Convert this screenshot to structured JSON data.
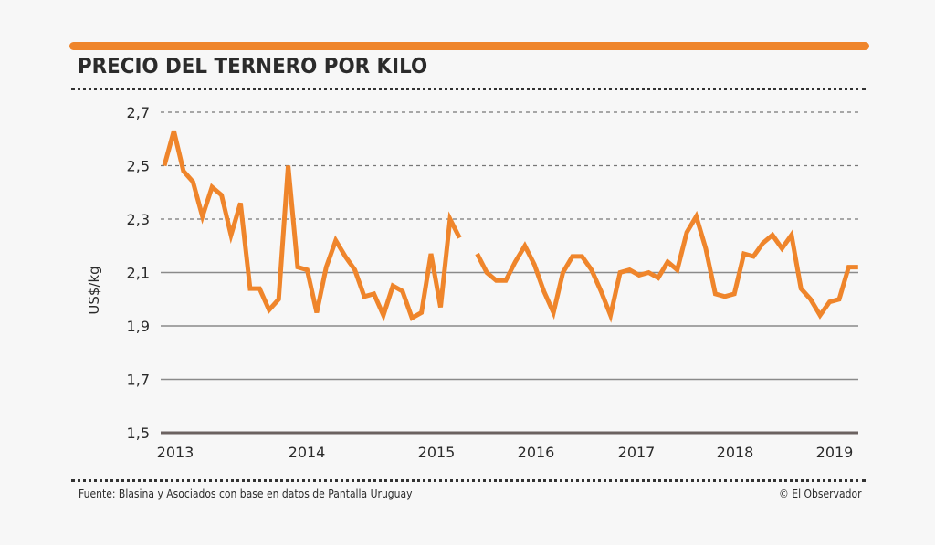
{
  "header": {
    "title": "PRECIO DEL TERNERO POR KILO",
    "accent_color": "#ef852b"
  },
  "footer": {
    "source": "Fuente: Blasina y Asociados con base en datos de Pantalla Uruguay",
    "credit": "© El Observador"
  },
  "chart_data": {
    "type": "line",
    "title": "PRECIO DEL TERNERO POR KILO",
    "xlabel": "",
    "ylabel": "US$/kg",
    "ylim": [
      1.5,
      2.7
    ],
    "yticks": [
      1.5,
      1.7,
      1.9,
      2.1,
      2.3,
      2.5,
      2.7
    ],
    "ytick_labels": [
      "1,5",
      "1,7",
      "1,9",
      "2,1",
      "2,3",
      "2,5",
      "2,7"
    ],
    "grid": "horizontal (dashed above 2,1; solid at and below)",
    "legend": "none",
    "x_unit": "monthly",
    "xlim": [
      2013.0,
      2019.6
    ],
    "xticks": [
      2013.1,
      2014.4,
      2015.7,
      2016.7,
      2017.7,
      2018.7,
      2019.7
    ],
    "xtick_labels": [
      "2013",
      "2014",
      "2015",
      "2016",
      "2017",
      "2018",
      "2019"
    ],
    "line_color": "#ef852b",
    "series": [
      {
        "name": "Precio del ternero (US$/kg)",
        "segments": [
          [
            2.5,
            2.63,
            2.48,
            2.44,
            2.31,
            2.42,
            2.39,
            2.24,
            2.36,
            2.04,
            2.04,
            1.96,
            2.0,
            2.5,
            2.12,
            2.11,
            1.95,
            2.12,
            2.22,
            2.16,
            2.11,
            2.01,
            2.02,
            1.94,
            2.05,
            2.03,
            1.93,
            1.95,
            2.17,
            1.97,
            2.3,
            2.23
          ],
          [
            2.17,
            2.1,
            2.07,
            2.07,
            2.14,
            2.2,
            2.13,
            2.03,
            1.95,
            2.1,
            2.16,
            2.16,
            2.11,
            2.03,
            1.94,
            2.1,
            2.11,
            2.09,
            2.1,
            2.08,
            2.14,
            2.11,
            2.25,
            2.31,
            2.19,
            2.02,
            2.01,
            2.02,
            2.17,
            2.16,
            2.21,
            2.24,
            2.19,
            2.24,
            2.04,
            2.0,
            1.94,
            1.99,
            2.0,
            2.12,
            2.12
          ]
        ],
        "gap_months_between_segments": 1
      }
    ]
  }
}
